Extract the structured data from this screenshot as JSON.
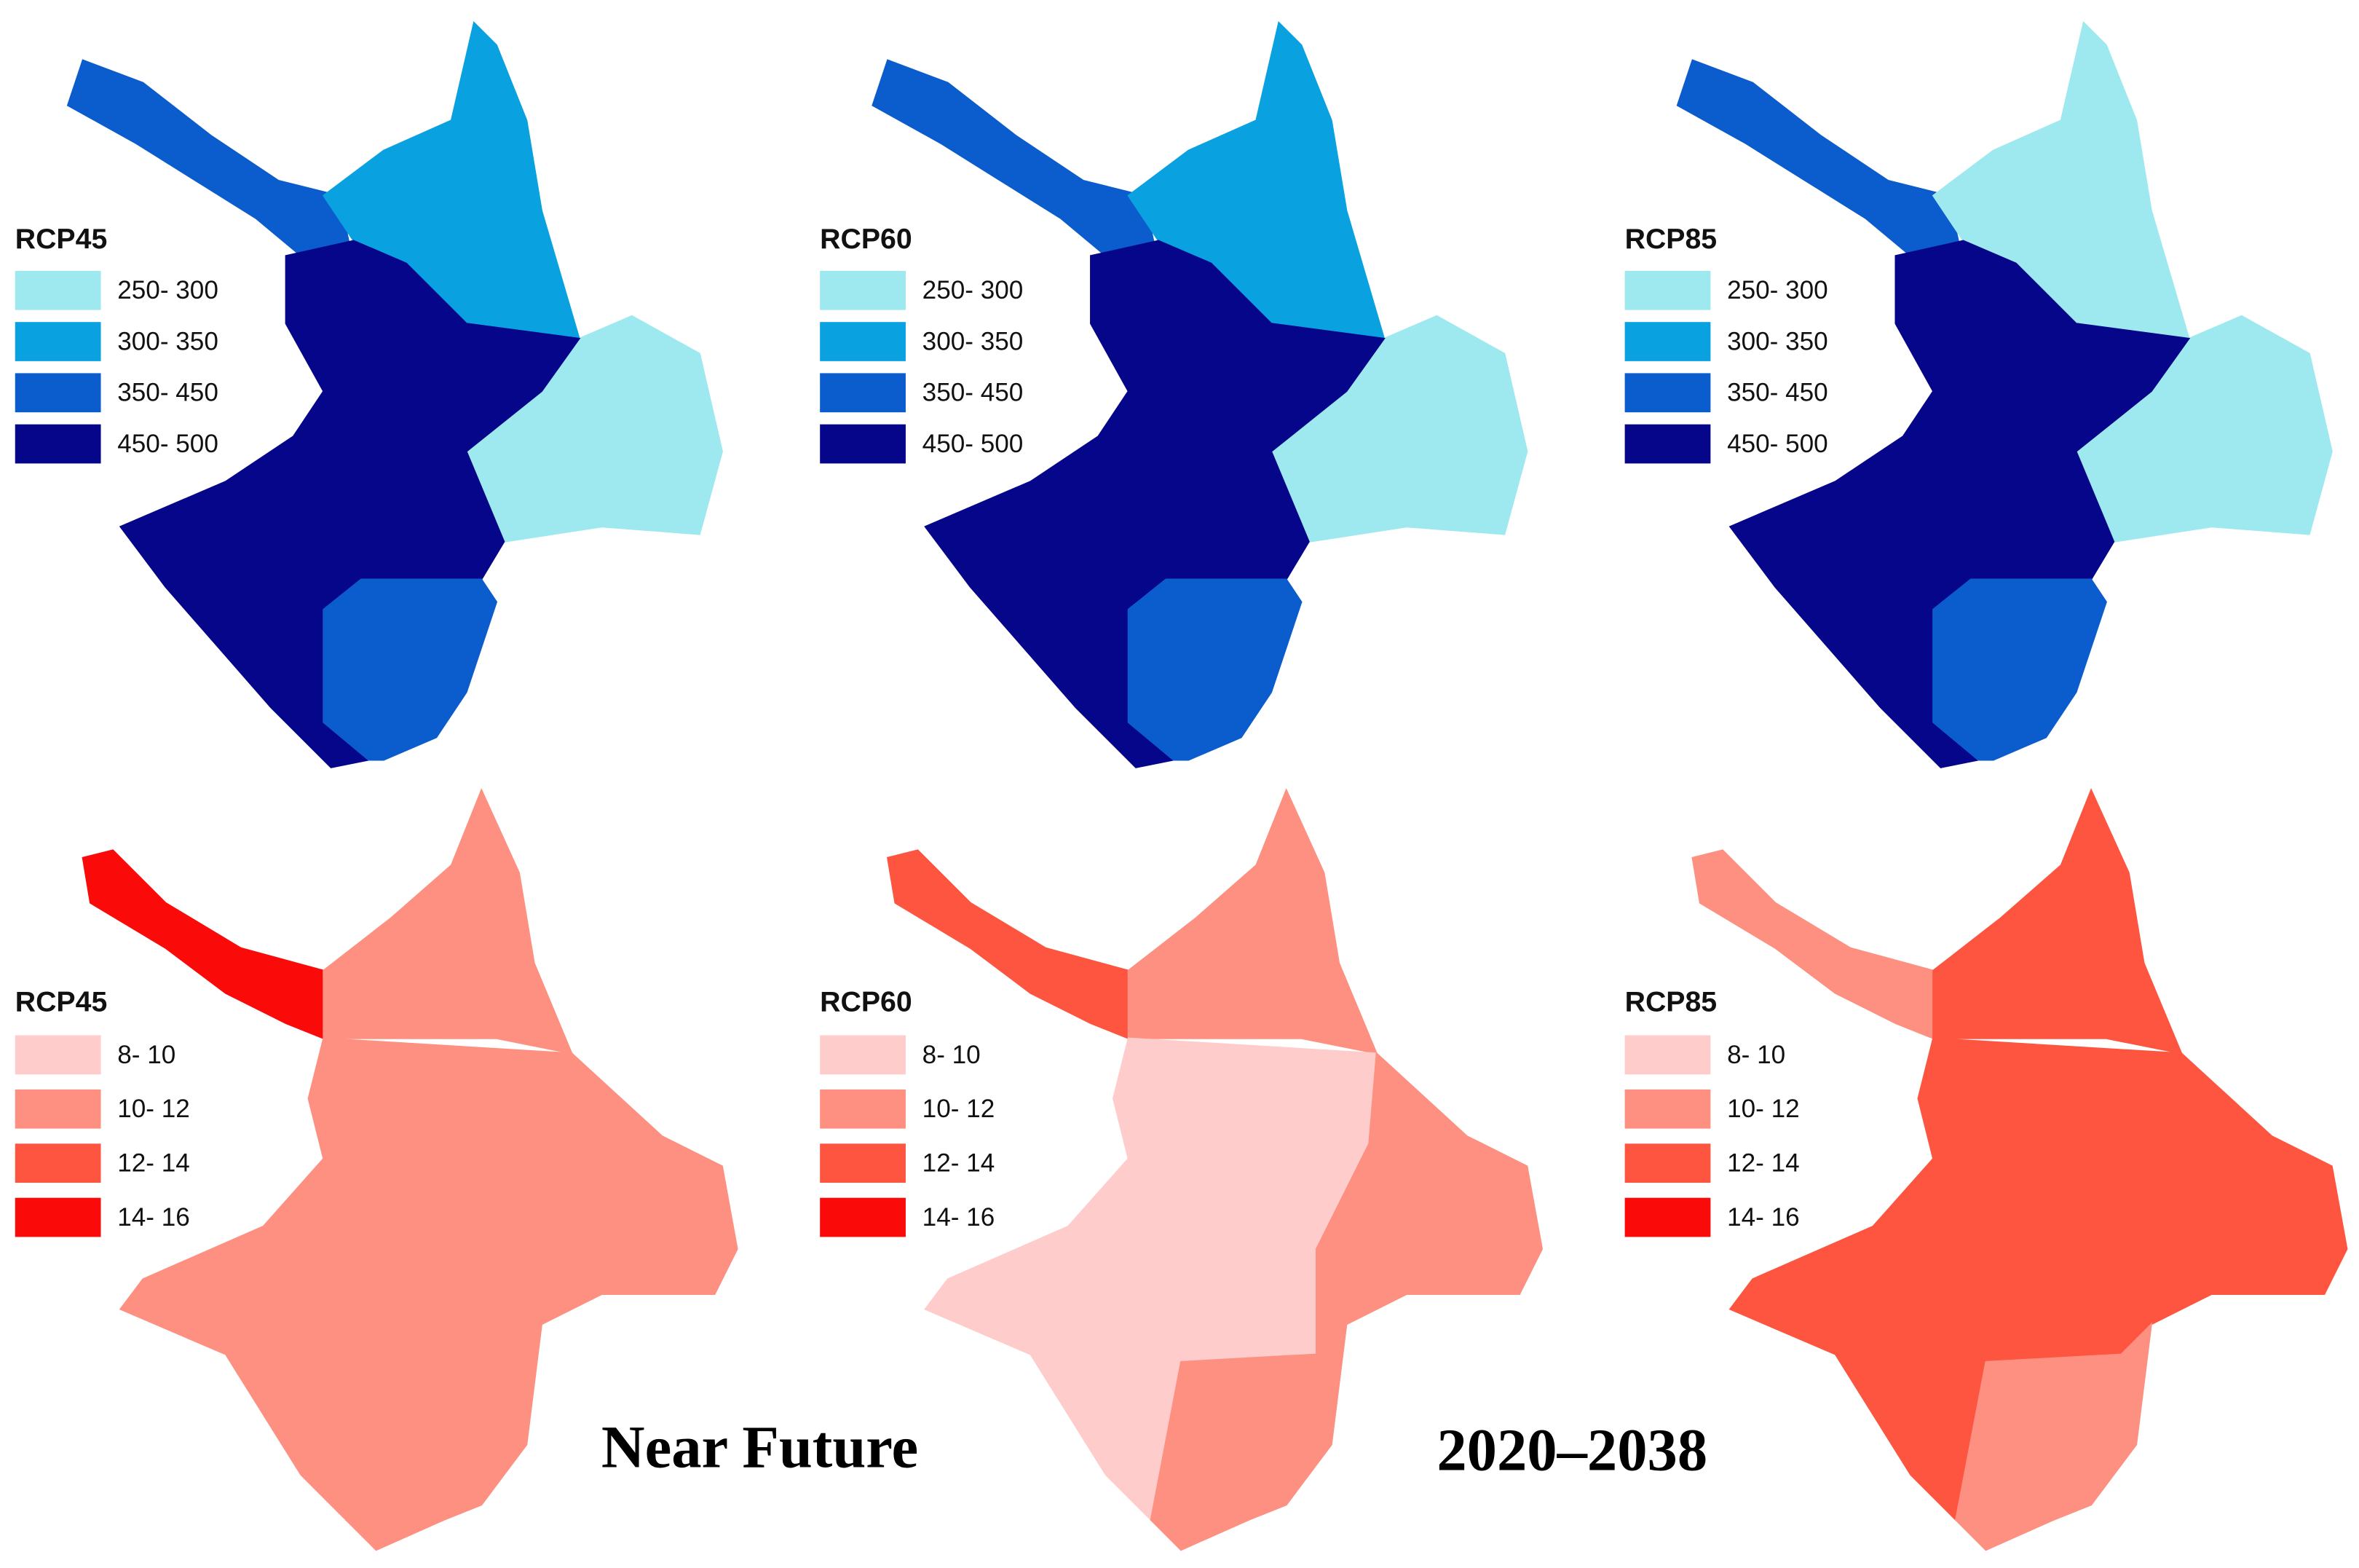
{
  "rows": [
    {
      "panels": [
        {
          "title": "RCP45",
          "legend": [
            {
              "label": "250- 300",
              "color": "#9ee9ef"
            },
            {
              "label": "300- 350",
              "color": "#0aa1e0"
            },
            {
              "label": "350- 450",
              "color": "#0b5ccc"
            },
            {
              "label": "450- 500",
              "color": "#05068a"
            }
          ]
        },
        {
          "title": "RCP60",
          "legend": [
            {
              "label": "250- 300",
              "color": "#9ee9ef"
            },
            {
              "label": "300- 350",
              "color": "#0aa1e0"
            },
            {
              "label": "350- 450",
              "color": "#0b5ccc"
            },
            {
              "label": "450- 500",
              "color": "#05068a"
            }
          ]
        },
        {
          "title": "RCP85",
          "legend": [
            {
              "label": "250- 300",
              "color": "#9ee9ef"
            },
            {
              "label": "300- 350",
              "color": "#0aa1e0"
            },
            {
              "label": "350- 450",
              "color": "#0b5ccc"
            },
            {
              "label": "450- 500",
              "color": "#05068a"
            }
          ]
        }
      ]
    },
    {
      "panels": [
        {
          "title": "RCP45",
          "legend": [
            {
              "label": "8- 10",
              "color": "#ffcccc"
            },
            {
              "label": "10- 12",
              "color": "#fd9080"
            },
            {
              "label": "12- 14",
              "color": "#fd5540"
            },
            {
              "label": "14- 16",
              "color": "#fb0a0a"
            }
          ]
        },
        {
          "title": "RCP60",
          "legend": [
            {
              "label": "8- 10",
              "color": "#ffcccc"
            },
            {
              "label": "10- 12",
              "color": "#fd9080"
            },
            {
              "label": "12- 14",
              "color": "#fd5540"
            },
            {
              "label": "14- 16",
              "color": "#fb0a0a"
            }
          ]
        },
        {
          "title": "RCP85",
          "legend": [
            {
              "label": "8- 10",
              "color": "#ffcccc"
            },
            {
              "label": "10- 12",
              "color": "#fd9080"
            },
            {
              "label": "12- 14",
              "color": "#fd5540"
            },
            {
              "label": "14- 16",
              "color": "#fb0a0a"
            }
          ]
        }
      ]
    }
  ],
  "caption": {
    "left": "Near Future",
    "right": "2020–2038"
  }
}
